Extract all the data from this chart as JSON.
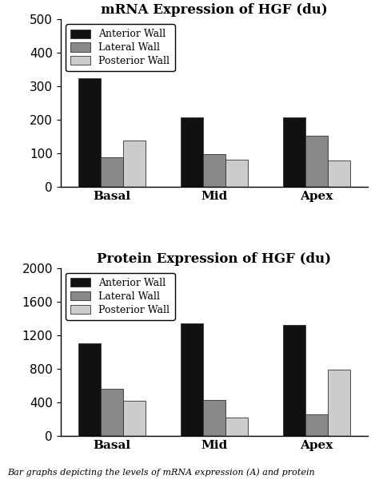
{
  "mrna": {
    "title": "mRNA Expression of HGF (du)",
    "categories": [
      "Basal",
      "Mid",
      "Apex"
    ],
    "series": {
      "Anterior Wall": [
        325,
        207,
        208
      ],
      "Lateral Wall": [
        90,
        98,
        153
      ],
      "Posterior Wall": [
        140,
        82,
        80
      ]
    },
    "ylim": [
      0,
      500
    ],
    "yticks": [
      0,
      100,
      200,
      300,
      400,
      500
    ]
  },
  "protein": {
    "title": "Protein Expression of HGF (du)",
    "categories": [
      "Basal",
      "Mid",
      "Apex"
    ],
    "series": {
      "Anterior Wall": [
        1100,
        1340,
        1320
      ],
      "Lateral Wall": [
        560,
        430,
        260
      ],
      "Posterior Wall": [
        420,
        220,
        790
      ]
    },
    "ylim": [
      0,
      2000
    ],
    "yticks": [
      0,
      400,
      800,
      1200,
      1600,
      2000
    ]
  },
  "colors": {
    "Anterior Wall": "#111111",
    "Lateral Wall": "#888888",
    "Posterior Wall": "#cccccc"
  },
  "legend_labels": [
    "Anterior Wall",
    "Lateral Wall",
    "Posterior Wall"
  ],
  "bar_width": 0.22,
  "caption": "Bar graphs depicting the levels of mRNA expression (A) and protein",
  "caption_fontsize": 8,
  "title_fontsize": 12,
  "tick_fontsize": 11,
  "legend_fontsize": 9
}
